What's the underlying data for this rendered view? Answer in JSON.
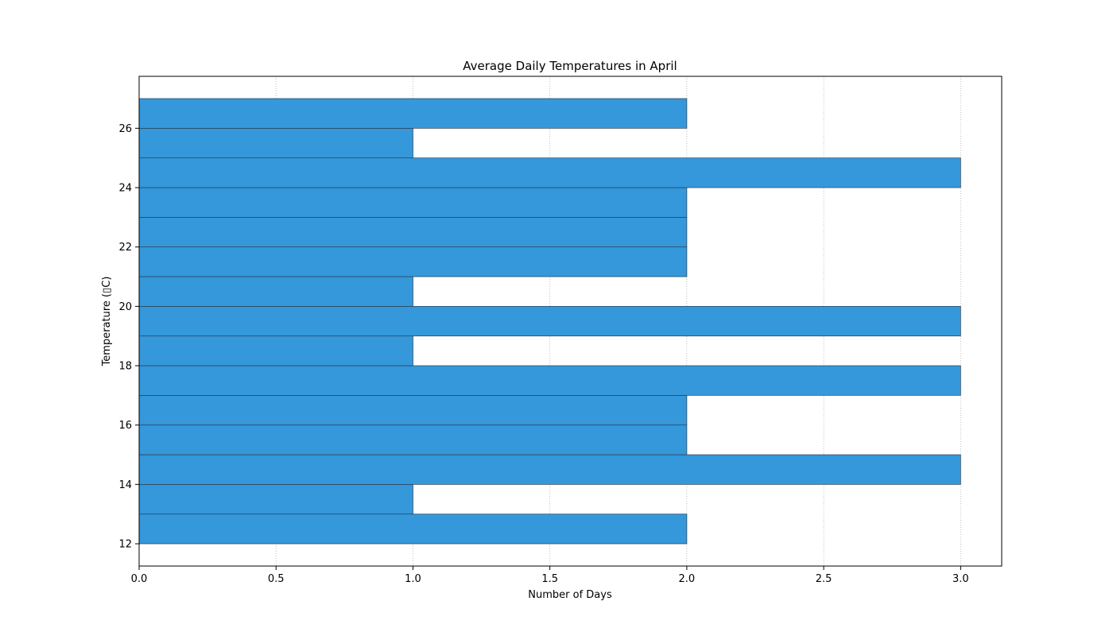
{
  "chart_data": {
    "type": "histogram",
    "orientation": "horizontal",
    "title": "Average Daily Temperatures in April",
    "xlabel": "Number of Days",
    "ylabel": "Temperature (▯C)",
    "xlim": [
      0,
      3.15
    ],
    "ylim": [
      11.25,
      27.75
    ],
    "xticks": [
      "0.0",
      "0.5",
      "1.0",
      "1.5",
      "2.0",
      "2.5",
      "3.0"
    ],
    "yticks": [
      "12",
      "14",
      "16",
      "18",
      "20",
      "22",
      "24",
      "26"
    ],
    "bins": [
      {
        "start": 12,
        "end": 13,
        "count": 2
      },
      {
        "start": 13,
        "end": 14,
        "count": 1
      },
      {
        "start": 14,
        "end": 15,
        "count": 3
      },
      {
        "start": 15,
        "end": 16,
        "count": 2
      },
      {
        "start": 16,
        "end": 17,
        "count": 2
      },
      {
        "start": 17,
        "end": 18,
        "count": 3
      },
      {
        "start": 18,
        "end": 19,
        "count": 1
      },
      {
        "start": 19,
        "end": 20,
        "count": 3
      },
      {
        "start": 20,
        "end": 21,
        "count": 1
      },
      {
        "start": 21,
        "end": 22,
        "count": 2
      },
      {
        "start": 22,
        "end": 23,
        "count": 2
      },
      {
        "start": 23,
        "end": 24,
        "count": 2
      },
      {
        "start": 24,
        "end": 25,
        "count": 3
      },
      {
        "start": 25,
        "end": 26,
        "count": 1
      },
      {
        "start": 26,
        "end": 27,
        "count": 2
      }
    ],
    "bar_color": "#3498db",
    "edge_color": "#2c3e50",
    "grid": {
      "x": true,
      "y": false,
      "style": "dotted"
    }
  }
}
